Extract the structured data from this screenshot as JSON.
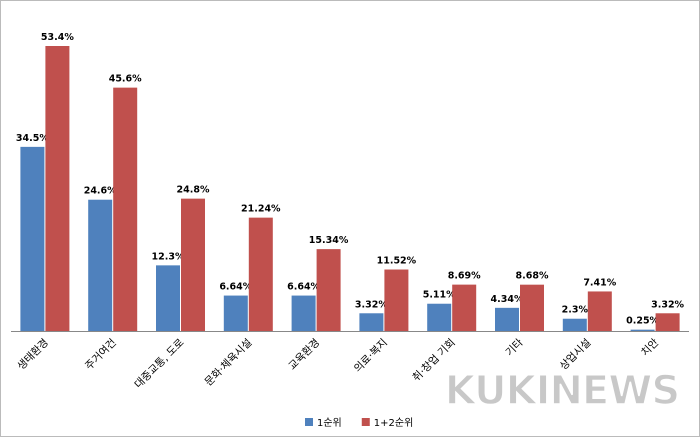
{
  "chart_data": {
    "type": "bar",
    "categories": [
      "생태환경",
      "주거여건",
      "대중교통, 도로",
      "문화·체육시설",
      "교육환경",
      "의료·복지",
      "취·창업 기회",
      "기타",
      "상업시설",
      "치안"
    ],
    "series": [
      {
        "name": "1순위",
        "color": "#4f81bd",
        "values": [
          34.5,
          24.6,
          12.3,
          6.64,
          6.64,
          3.32,
          5.11,
          4.34,
          2.3,
          0.25
        ],
        "value_labels": [
          "34.5%",
          "24.6%",
          "12.3%",
          "6.64%",
          "6.64%",
          "3.32%",
          "5.11%",
          "4.34%",
          "2.3%",
          "0.25%"
        ]
      },
      {
        "name": "1+2순위",
        "color": "#c0504d",
        "values": [
          53.4,
          45.6,
          24.8,
          21.24,
          15.34,
          11.52,
          8.69,
          8.68,
          7.41,
          3.32
        ],
        "value_labels": [
          "53.4%",
          "45.6%",
          "24.8%",
          "21.24%",
          "15.34%",
          "11.52%",
          "8.69%",
          "8.68%",
          "7.41%",
          "3.32%"
        ]
      }
    ],
    "legend": "bottom",
    "watermark": "KUKINEWS"
  }
}
